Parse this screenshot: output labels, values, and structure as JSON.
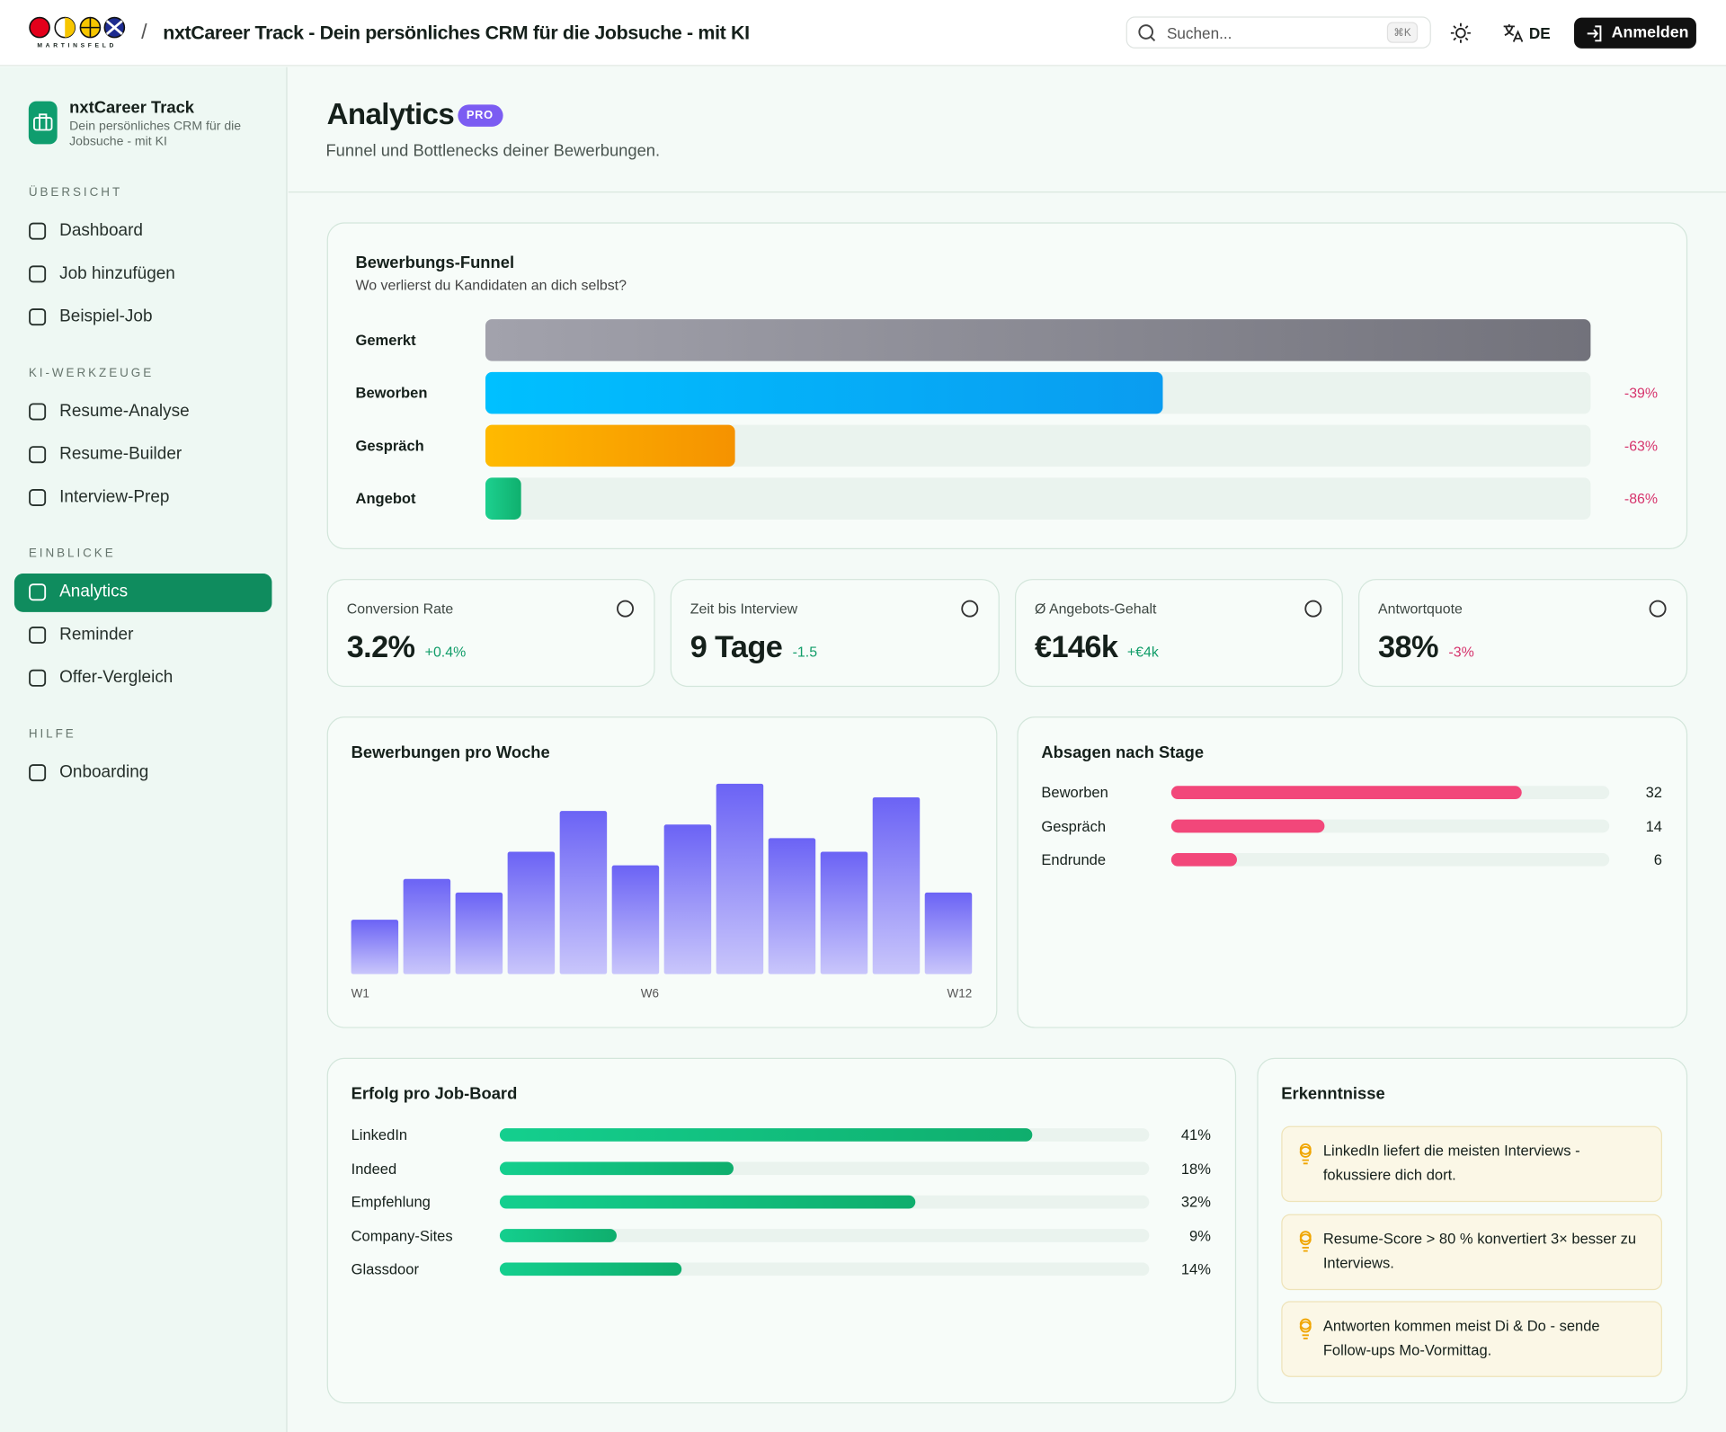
{
  "header": {
    "brand": "MARTINSFELD",
    "separator": "/",
    "title": "nxtCareer Track - Dein persönliches CRM für die Jobsuche - mit KI",
    "search_placeholder": "Suchen...",
    "search_shortcut": "⌘K",
    "language": "DE",
    "login": "Anmelden"
  },
  "sidebar": {
    "app_name": "nxtCareer Track",
    "app_tagline": "Dein persönliches CRM für die Jobsuche - mit KI",
    "sections": [
      {
        "title": "ÜBERSICHT",
        "items": [
          {
            "label": "Dashboard"
          },
          {
            "label": "Job hinzufügen"
          },
          {
            "label": "Beispiel-Job"
          }
        ]
      },
      {
        "title": "KI-WERKZEUGE",
        "items": [
          {
            "label": "Resume-Analyse"
          },
          {
            "label": "Resume-Builder"
          },
          {
            "label": "Interview-Prep"
          }
        ]
      },
      {
        "title": "EINBLICKE",
        "items": [
          {
            "label": "Analytics",
            "active": true
          },
          {
            "label": "Reminder"
          },
          {
            "label": "Offer-Vergleich"
          }
        ]
      },
      {
        "title": "HILFE",
        "items": [
          {
            "label": "Onboarding"
          }
        ]
      }
    ]
  },
  "page": {
    "title": "Analytics",
    "badge": "PRO",
    "subtitle": "Funnel und Bottlenecks deiner Bewerbungen."
  },
  "funnel": {
    "title": "Bewerbungs-Funnel",
    "subtitle": "Wo verlierst du Kandidaten an dich selbst?",
    "categories": [
      "Gemerkt",
      "Beworben",
      "Gespräch",
      "Angebot"
    ],
    "values": [
      124,
      76,
      28,
      4
    ],
    "xlim": [
      0,
      124
    ],
    "colors": [
      [
        "#a2a2ac",
        "#72727b"
      ],
      [
        "#00c0ff",
        "#0a9cf0"
      ],
      [
        "#ffba00",
        "#f59200"
      ],
      [
        "#1dd08f",
        "#0fb06e"
      ]
    ],
    "drops": [
      null,
      "-39%",
      "-63%",
      "-86%"
    ],
    "drop_color": "#d6336c"
  },
  "kpis": [
    {
      "label": "Conversion Rate",
      "value": "3.2%",
      "delta": "+0.4%",
      "delta_color": "#119d69"
    },
    {
      "label": "Zeit bis Interview",
      "value": "9 Tage",
      "delta": "-1.5",
      "delta_color": "#119d69"
    },
    {
      "label": "Ø Angebots-Gehalt",
      "value": "€146k",
      "delta": "+€4k",
      "delta_color": "#119d69"
    },
    {
      "label": "Antwortquote",
      "value": "38%",
      "delta": "-3%",
      "delta_color": "#d6336c"
    }
  ],
  "weekly": {
    "title": "Bewerbungen pro Woche",
    "categories": [
      "W1",
      null,
      null,
      null,
      null,
      "W6",
      null,
      null,
      null,
      null,
      null,
      "W12"
    ],
    "values": [
      4,
      7,
      6,
      9,
      12,
      8,
      11,
      14,
      10,
      9,
      13,
      6
    ],
    "ylim": [
      0,
      14
    ],
    "colors": [
      "#6b63f5",
      "#c9c6fb"
    ]
  },
  "rejections": {
    "title": "Absagen nach Stage",
    "categories": [
      "Beworben",
      "Gespräch",
      "Endrunde"
    ],
    "values": [
      32,
      14,
      6
    ],
    "xlim": [
      0,
      40
    ],
    "color": "#f2477a"
  },
  "job_boards": {
    "title": "Erfolg pro Job-Board",
    "categories": [
      "LinkedIn",
      "Indeed",
      "Empfehlung",
      "Company-Sites",
      "Glassdoor"
    ],
    "values": [
      41,
      18,
      32,
      9,
      14
    ],
    "value_labels": [
      "41%",
      "18%",
      "32%",
      "9%",
      "14%"
    ],
    "xlim": [
      0,
      50
    ],
    "colors": [
      "#14cf8e",
      "#0fae6d"
    ]
  },
  "insights": {
    "title": "Erkenntnisse",
    "items": [
      "LinkedIn liefert die meisten Interviews - fokussiere dich dort.",
      "Resume-Score > 80 % konvertiert 3× besser zu Interviews.",
      "Antworten kommen meist Di & Do - sende Follow-ups Mo-Vormittag."
    ]
  }
}
